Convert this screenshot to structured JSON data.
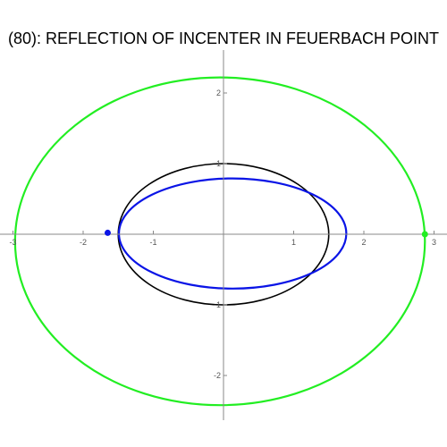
{
  "title": "(80): REFLECTION OF INCENTER IN FEUERBACH POINT",
  "axes": {
    "x_ticks": [
      {
        "value": -3,
        "label": "-3"
      },
      {
        "value": -2,
        "label": "-2"
      },
      {
        "value": -1,
        "label": "-1"
      },
      {
        "value": 1,
        "label": "1"
      },
      {
        "value": 2,
        "label": "2"
      },
      {
        "value": 3,
        "label": "3"
      }
    ],
    "y_ticks": [
      {
        "value": 2,
        "label": "2"
      },
      {
        "value": 1,
        "label": "1"
      },
      {
        "value": -1,
        "label": "-1"
      },
      {
        "value": -2,
        "label": "-2"
      }
    ]
  },
  "curves": {
    "black_ellipse": {
      "cx": 0,
      "cy": 0,
      "rx": 1.5,
      "ry": 1.0,
      "color": "#000000"
    },
    "blue_ellipse": {
      "cx": 0.13,
      "cy": 0.01,
      "rx": 1.62,
      "ry": 0.78,
      "color": "#0a14e6"
    },
    "green_curve": {
      "cx": -0.05,
      "cy": -0.1,
      "rx": 2.92,
      "ry": 2.32,
      "color": "#22ee22"
    }
  },
  "points": {
    "blue_point": {
      "x": -1.65,
      "y": 0.02,
      "color": "#0a14e6"
    },
    "green_point": {
      "x": 2.87,
      "y": 0.0,
      "color": "#22ee22"
    }
  }
}
